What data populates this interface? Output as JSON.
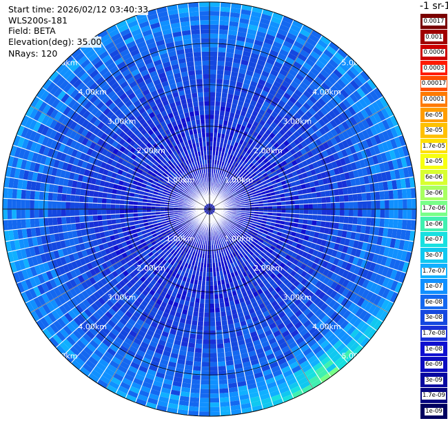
{
  "info": {
    "start_time": "Start time: 2026/02/12 03:40:33",
    "instrument": "WLS200s-181",
    "field": "Field: BETA",
    "elevation": "Elevation(deg): 35.00",
    "nrays": "NRays: 120"
  },
  "colorbar": {
    "title": "-1 sr-1",
    "labels": [
      "0.0017",
      "0.001",
      "0.0006",
      "0.0003",
      "0.00017",
      "0.0001",
      "6e-05",
      "3e-05",
      "1.7e-05",
      "1e-05",
      "6e-06",
      "3e-06",
      "1.7e-06",
      "1e-06",
      "6e-07",
      "3e-07",
      "1.7e-07",
      "1e-07",
      "6e-08",
      "3e-08",
      "1.7e-08",
      "1e-08",
      "6e-09",
      "3e-09",
      "1.7e-09",
      "1e-09"
    ],
    "colors": [
      "#7a0000",
      "#a00000",
      "#cc0000",
      "#ff1a00",
      "#ff4d00",
      "#ff7a00",
      "#ff9d00",
      "#ffc000",
      "#ffe000",
      "#f7ff10",
      "#d8ff30",
      "#a8ff60",
      "#78ff88",
      "#40f0b0",
      "#18e0e0",
      "#10c8f0",
      "#10b0ff",
      "#1090ff",
      "#1468f0",
      "#1448e0",
      "#1830d8",
      "#1010d0",
      "#0c0cc0",
      "#0808a0",
      "#040480",
      "#000060"
    ]
  },
  "chart_data": {
    "type": "heatmap",
    "projection": "polar-ppi",
    "field": "BETA",
    "nrays": 120,
    "range_rings_km": [
      1.0,
      2.0,
      3.0,
      4.0,
      5.0
    ],
    "ring_labels": [
      "1.00km",
      "2.00km",
      "3.00km",
      "4.00km",
      "5.00km"
    ],
    "max_range_km": 5.0,
    "color_scale": "log",
    "value_range": [
      1e-09,
      0.0017
    ],
    "typical_values": {
      "near_center": 1e-08,
      "mid_range": 3e-08,
      "outer_edge": 1e-07,
      "southeast_edge_max": 1.7e-06
    },
    "grid": true,
    "spoke_angles_deg": [
      0,
      30,
      60,
      90,
      120,
      150,
      180,
      210,
      240,
      270,
      300,
      330
    ]
  }
}
